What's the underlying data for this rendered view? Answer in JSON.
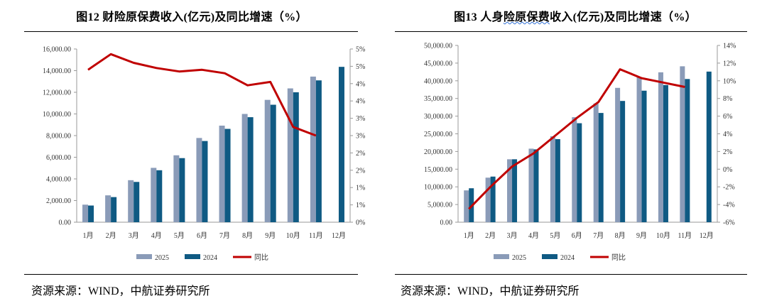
{
  "charts": [
    {
      "title": "图12  财险原保费收入(亿元)及同比增速（%）",
      "source": "资源来源：WIND，中航证券研究所",
      "chart_data": {
        "type": "bar",
        "categories": [
          "1月",
          "2月",
          "3月",
          "4月",
          "5月",
          "6月",
          "7月",
          "8月",
          "9月",
          "10月",
          "11月",
          "12月"
        ],
        "series": [
          {
            "name": "2025",
            "type": "bar",
            "axis": "left",
            "values": [
              1620,
              2480,
              3880,
              5020,
              6180,
              7780,
              8920,
              10000,
              11300,
              12360,
              13450,
              null
            ]
          },
          {
            "name": "2024",
            "type": "bar",
            "axis": "left",
            "values": [
              1540,
              2320,
              3720,
              4800,
              5920,
              7500,
              8620,
              9700,
              10850,
              12000,
              13100,
              14350
            ]
          },
          {
            "name": "同比",
            "type": "line",
            "axis": "right",
            "values": [
              4.4,
              4.85,
              4.6,
              4.45,
              4.35,
              4.4,
              4.3,
              3.95,
              4.05,
              2.75,
              2.5,
              null
            ]
          }
        ],
        "left_axis": {
          "min": 0,
          "max": 16000,
          "ticks": [
            0,
            2000,
            4000,
            6000,
            8000,
            10000,
            12000,
            14000,
            16000
          ],
          "tick_labels": [
            "0.00",
            "2,000.00",
            "4,000.00",
            "6,000.00",
            "8,000.00",
            "10,000.00",
            "12,000.00",
            "14,000.00",
            "16,000.00"
          ]
        },
        "right_axis": {
          "min": 0,
          "max": 5,
          "ticks": [
            0,
            0.5,
            1,
            1.5,
            2,
            2.5,
            3,
            3.5,
            4,
            4.5,
            5
          ],
          "tick_labels": [
            "0%",
            "1%",
            "1%",
            "2%",
            "2%",
            "3%",
            "3%",
            "4%",
            "4%",
            "5%",
            "5%"
          ]
        },
        "legend": [
          "2025",
          "2024",
          "同比"
        ],
        "legend_position": "bottom"
      }
    },
    {
      "title_pre": "图13  人身",
      "title_u": "险原保费",
      "title_post": "收入(亿元)及同比增速（%）",
      "source": "资源来源：WIND，中航证券研究所",
      "chart_data": {
        "type": "bar",
        "categories": [
          "1月",
          "2月",
          "3月",
          "4月",
          "5月",
          "6月",
          "7月",
          "8月",
          "9月",
          "10月",
          "11月",
          "12月"
        ],
        "series": [
          {
            "name": "2025",
            "type": "bar",
            "axis": "left",
            "values": [
              9000,
              12600,
              17800,
              20800,
              24300,
              29700,
              33600,
              38000,
              41000,
              42400,
              44100,
              null
            ]
          },
          {
            "name": "2024",
            "type": "bar",
            "axis": "left",
            "values": [
              9600,
              12900,
              17800,
              20600,
              23500,
              28000,
              30900,
              34300,
              37200,
              38800,
              40500,
              42600
            ]
          },
          {
            "name": "同比",
            "type": "line",
            "axis": "right",
            "values": [
              -4.5,
              -2.0,
              0.3,
              1.8,
              3.8,
              5.8,
              7.6,
              11.3,
              10.3,
              9.8,
              9.3,
              null
            ]
          }
        ],
        "left_axis": {
          "min": 0,
          "max": 50000,
          "ticks": [
            0,
            5000,
            10000,
            15000,
            20000,
            25000,
            30000,
            35000,
            40000,
            45000,
            50000
          ],
          "tick_labels": [
            "0.00",
            "5,000.00",
            "10,000.00",
            "15,000.00",
            "20,000.00",
            "25,000.00",
            "30,000.00",
            "35,000.00",
            "40,000.00",
            "45,000.00",
            "50,000.00"
          ]
        },
        "right_axis": {
          "min": -6,
          "max": 14,
          "ticks": [
            -6,
            -4,
            -2,
            0,
            2,
            4,
            6,
            8,
            10,
            12,
            14
          ],
          "tick_labels": [
            "-6%",
            "-4%",
            "-2%",
            "0%",
            "2%",
            "4%",
            "6%",
            "8%",
            "10%",
            "12%",
            "14%"
          ]
        },
        "legend": [
          "2025",
          "2024",
          "同比"
        ],
        "legend_position": "bottom"
      }
    }
  ],
  "colors": {
    "bar2025": "#8a9bb8",
    "bar2024": "#0f5a83",
    "line": "#c00000",
    "axis": "#9a9a9a",
    "text": "#333333"
  }
}
